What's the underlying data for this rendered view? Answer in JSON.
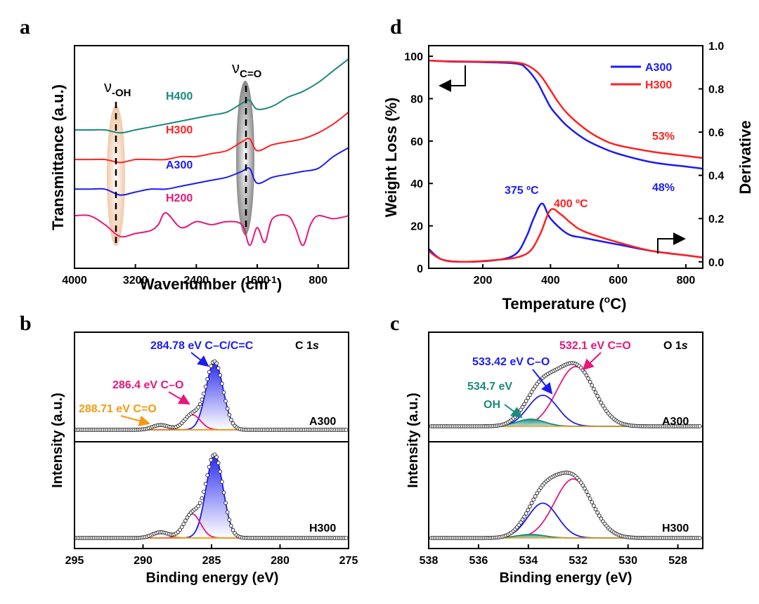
{
  "panels": {
    "a": {
      "letter": "a",
      "xlabel_main": "Wavenumber (cm",
      "xlabel_sup": "-1",
      "xlabel_end": ")",
      "ylabel": "Transmittance (a.u.)",
      "ann_oh_base": "ν",
      "ann_oh_sub": "-OH",
      "ann_co_base": "ν",
      "ann_co_sub": "C=O"
    },
    "d": {
      "letter": "d",
      "xlabel_main": "Temperature (",
      "xlabel_sup": "o",
      "xlabel_end": "C)",
      "ylabel_left": "Weight Loss (%)",
      "ylabel_right": "Derivative",
      "ann_53": "53%",
      "ann_48": "48%",
      "ann_375": "375 ºC",
      "ann_400": "400 ºC"
    },
    "b": {
      "letter": "b",
      "xlabel": "Binding energy (eV)",
      "ylabel": "Intensity (a.u.)",
      "title_main": "C 1",
      "title_italic": "s",
      "sample_top": "A300",
      "sample_bottom": "H300",
      "peak1": "284.78 eV C–C/C=C",
      "peak2": "286.4 eV C–O",
      "peak3": "288.71 eV C=O"
    },
    "c": {
      "letter": "c",
      "xlabel": "Binding energy (eV)",
      "ylabel": "Intensity (a.u.)",
      "title_main": "O 1",
      "title_italic": "s",
      "sample_top": "A300",
      "sample_bottom": "H300",
      "peak1": "532.1 eV C=O",
      "peak2": "533.42 eV C–O",
      "peak3_a": "534.7 eV",
      "peak3_b": "OH"
    }
  },
  "chart_data": [
    {
      "panel": "a",
      "type": "line",
      "xlabel": "Wavenumber (cm-1)",
      "ylabel": "Transmittance (a.u.)",
      "xlim": [
        4000,
        400
      ],
      "x_ticks": [
        4000,
        3200,
        2400,
        1600,
        800
      ],
      "annotations": [
        "ν-OH",
        "νC=O"
      ],
      "series": [
        {
          "name": "H400",
          "color": "#1a8a7a",
          "x": [
            4000,
            3800,
            3600,
            3400,
            3200,
            3000,
            2800,
            2600,
            2400,
            2200,
            2000,
            1800,
            1700,
            1600,
            1400,
            1200,
            1000,
            800,
            600,
            400
          ],
          "y": [
            42,
            42,
            42,
            41,
            42,
            43,
            44,
            45,
            46,
            47,
            48,
            51,
            52,
            49,
            50,
            53,
            55,
            58,
            62,
            66
          ]
        },
        {
          "name": "H300",
          "color": "#ff2020",
          "x": [
            4000,
            3800,
            3600,
            3400,
            3200,
            3000,
            2800,
            2600,
            2400,
            2200,
            2000,
            1800,
            1700,
            1600,
            1400,
            1200,
            1000,
            800,
            600,
            400
          ],
          "y": [
            32,
            32,
            32,
            31,
            32,
            32,
            32,
            33,
            33,
            34,
            35,
            38,
            39,
            35,
            37,
            38,
            39,
            41,
            44,
            48
          ]
        },
        {
          "name": "A300",
          "color": "#1c1cf0",
          "x": [
            4000,
            3800,
            3600,
            3400,
            3200,
            3000,
            2800,
            2600,
            2400,
            2200,
            2000,
            1800,
            1700,
            1600,
            1400,
            1200,
            1000,
            800,
            600,
            400
          ],
          "y": [
            22,
            22,
            22,
            20,
            21,
            22,
            22,
            23,
            24,
            25,
            26,
            28,
            29,
            24,
            26,
            27,
            28,
            29,
            33,
            36
          ]
        },
        {
          "name": "H200",
          "color": "#e8167a",
          "x": [
            4000,
            3800,
            3600,
            3400,
            3200,
            3000,
            2900,
            2800,
            2600,
            2400,
            2200,
            2000,
            1800,
            1700,
            1600,
            1500,
            1400,
            1200,
            1100,
            1000,
            900,
            800,
            600,
            400
          ],
          "y": [
            13,
            13,
            10,
            6,
            7,
            8,
            10,
            14,
            9,
            11,
            10,
            11,
            10,
            3,
            9,
            4,
            12,
            13,
            9,
            3,
            10,
            13,
            12,
            13
          ]
        }
      ]
    },
    {
      "panel": "d",
      "type": "line",
      "xlabel": "Temperature (oC)",
      "ylabel_left": "Weight Loss (%)",
      "ylabel_right": "Derivative",
      "xlim": [
        40,
        850
      ],
      "ylim_left": [
        0,
        105
      ],
      "ylim_right": [
        -0.03,
        1.0
      ],
      "x_ticks": [
        200,
        400,
        600,
        800
      ],
      "y_ticks_left": [
        0,
        20,
        40,
        60,
        80,
        100
      ],
      "y_ticks_right": [
        0.0,
        0.2,
        0.4,
        0.6,
        0.8,
        1.0
      ],
      "legend": {
        "position": "top-right",
        "entries": [
          "A300",
          "H300"
        ]
      },
      "series": [
        {
          "name": "A300",
          "color": "#1c1cf0",
          "axis": "left",
          "x": [
            40,
            100,
            200,
            300,
            330,
            360,
            380,
            400,
            420,
            450,
            500,
            550,
            600,
            700,
            800,
            850
          ],
          "y": [
            98,
            97.5,
            97.2,
            96.5,
            94,
            88,
            82,
            76,
            72,
            67,
            61,
            57,
            54,
            50,
            48,
            47
          ]
        },
        {
          "name": "H300",
          "color": "#ff2020",
          "axis": "left",
          "x": [
            40,
            100,
            200,
            300,
            340,
            370,
            400,
            420,
            450,
            500,
            550,
            600,
            700,
            800,
            850
          ],
          "y": [
            98,
            97.6,
            97.4,
            97,
            95,
            91,
            84,
            79,
            73,
            66,
            61,
            58,
            55,
            53,
            52
          ]
        },
        {
          "name": "A300",
          "color": "#1c1cf0",
          "axis": "right",
          "x": [
            40,
            80,
            150,
            250,
            300,
            330,
            350,
            375,
            400,
            450,
            500,
            600,
            700,
            800,
            850
          ],
          "y": [
            0.06,
            0.01,
            0.0,
            0.01,
            0.04,
            0.12,
            0.2,
            0.27,
            0.2,
            0.13,
            0.11,
            0.08,
            0.05,
            0.03,
            0.02
          ]
        },
        {
          "name": "H300",
          "color": "#ff2020",
          "axis": "right",
          "x": [
            40,
            80,
            150,
            250,
            300,
            340,
            370,
            400,
            430,
            460,
            500,
            600,
            700,
            800,
            850
          ],
          "y": [
            0.05,
            0.01,
            0.0,
            0.01,
            0.02,
            0.05,
            0.13,
            0.24,
            0.22,
            0.18,
            0.14,
            0.09,
            0.05,
            0.03,
            0.02
          ]
        }
      ],
      "annotations": [
        "375 ºC",
        "400 ºC",
        "53%",
        "48%"
      ]
    },
    {
      "panel": "b",
      "type": "line",
      "title": "C 1s",
      "xlabel": "Binding energy (eV)",
      "ylabel": "Intensity (a.u.)",
      "xlim": [
        295,
        275
      ],
      "x_ticks": [
        295,
        290,
        285,
        280,
        275
      ],
      "peaks": [
        {
          "label": "284.78 eV C–C/C=C",
          "center": 284.78,
          "color": "#1c1cf0"
        },
        {
          "label": "286.4 eV C–O",
          "center": 286.4,
          "color": "#e8167a"
        },
        {
          "label": "288.71 eV C=O",
          "center": 288.71,
          "color": "#f59a10"
        }
      ],
      "samples": [
        "A300",
        "H300"
      ]
    },
    {
      "panel": "c",
      "type": "line",
      "title": "O 1s",
      "xlabel": "Binding energy (eV)",
      "ylabel": "Intensity (a.u.)",
      "xlim": [
        538,
        527
      ],
      "x_ticks": [
        538,
        536,
        534,
        532,
        530,
        528
      ],
      "peaks": [
        {
          "label": "532.1 eV C=O",
          "center": 532.1,
          "color": "#e8167a"
        },
        {
          "label": "533.42 eV C–O",
          "center": 533.42,
          "color": "#1c1cf0"
        },
        {
          "label": "534.7 eV OH",
          "center": 534.7,
          "color": "#1a8a7a"
        }
      ],
      "samples": [
        "A300",
        "H300"
      ]
    }
  ]
}
